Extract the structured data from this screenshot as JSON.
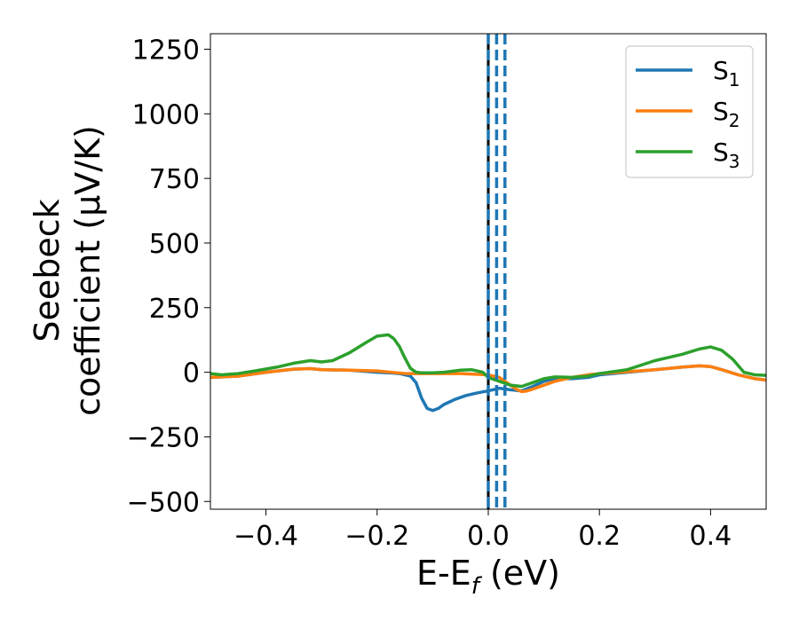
{
  "chart_data": {
    "type": "line",
    "xlabel": "E-E",
    "xlabel_sub": "f",
    "xlabel_unit": " (eV)",
    "ylabel_line1": "Seebeck",
    "ylabel_line2": "coefficient  (μV/K)",
    "xlim": [
      -0.5,
      0.5
    ],
    "ylim": [
      -530,
      1310
    ],
    "xticks": [
      -0.4,
      -0.2,
      0.0,
      0.2,
      0.4
    ],
    "xtick_labels": [
      "−0.4",
      "−0.2",
      "0.0",
      "0.2",
      "0.4"
    ],
    "yticks": [
      -500,
      -250,
      0,
      250,
      500,
      750,
      1000,
      1250
    ],
    "ytick_labels": [
      "−500",
      "−250",
      "0",
      "250",
      "500",
      "750",
      "1000",
      "1250"
    ],
    "grid": false,
    "legend_position": "top-right",
    "vertical_lines": [
      {
        "x": 0.0,
        "style": "solid",
        "color": "#000000"
      },
      {
        "x": 0.0,
        "style": "dashed",
        "color": "#1f77b4"
      },
      {
        "x": 0.015,
        "style": "dashed",
        "color": "#1f77b4"
      },
      {
        "x": 0.03,
        "style": "dashed",
        "color": "#1f77b4"
      }
    ],
    "series": [
      {
        "name": "S",
        "sub": "1",
        "color": "#1f77b4",
        "x": [
          -0.5,
          -0.45,
          -0.4,
          -0.35,
          -0.32,
          -0.3,
          -0.25,
          -0.2,
          -0.18,
          -0.16,
          -0.14,
          -0.13,
          -0.12,
          -0.11,
          -0.1,
          -0.09,
          -0.08,
          -0.06,
          -0.04,
          -0.02,
          0.0,
          0.02,
          0.04,
          0.06,
          0.08,
          0.1,
          0.12,
          0.15,
          0.18,
          0.2,
          0.25,
          0.3,
          0.35,
          0.38,
          0.4,
          0.42,
          0.45,
          0.48,
          0.5
        ],
        "y": [
          -20,
          -15,
          0,
          12,
          14,
          10,
          8,
          0,
          -2,
          -5,
          -15,
          -40,
          -100,
          -140,
          -148,
          -140,
          -125,
          -105,
          -90,
          -80,
          -72,
          -62,
          -68,
          -72,
          -55,
          -35,
          -25,
          -25,
          -20,
          -10,
          0,
          10,
          20,
          25,
          22,
          10,
          -10,
          -25,
          -30
        ]
      },
      {
        "name": "S",
        "sub": "2",
        "color": "#ff7f0e",
        "x": [
          -0.5,
          -0.45,
          -0.4,
          -0.35,
          -0.32,
          -0.3,
          -0.25,
          -0.2,
          -0.15,
          -0.1,
          -0.05,
          0.0,
          0.02,
          0.04,
          0.05,
          0.06,
          0.07,
          0.08,
          0.1,
          0.12,
          0.15,
          0.18,
          0.2,
          0.25,
          0.3,
          0.35,
          0.38,
          0.4,
          0.42,
          0.45,
          0.48,
          0.5
        ],
        "y": [
          -20,
          -15,
          0,
          12,
          14,
          10,
          8,
          5,
          -5,
          -5,
          -5,
          -10,
          -20,
          -50,
          -65,
          -75,
          -72,
          -65,
          -50,
          -35,
          -20,
          -10,
          -5,
          2,
          10,
          20,
          25,
          22,
          10,
          -10,
          -25,
          -30
        ]
      },
      {
        "name": "S",
        "sub": "3",
        "color": "#2ca02c",
        "x": [
          -0.5,
          -0.48,
          -0.45,
          -0.42,
          -0.38,
          -0.35,
          -0.32,
          -0.3,
          -0.28,
          -0.25,
          -0.22,
          -0.2,
          -0.18,
          -0.17,
          -0.16,
          -0.15,
          -0.14,
          -0.13,
          -0.12,
          -0.1,
          -0.08,
          -0.05,
          -0.03,
          -0.01,
          0.0,
          0.02,
          0.04,
          0.06,
          0.08,
          0.1,
          0.12,
          0.15,
          0.18,
          0.2,
          0.25,
          0.3,
          0.35,
          0.38,
          0.4,
          0.42,
          0.44,
          0.46,
          0.48,
          0.5
        ],
        "y": [
          -5,
          -10,
          -5,
          5,
          20,
          35,
          45,
          40,
          45,
          75,
          115,
          140,
          145,
          130,
          100,
          55,
          15,
          0,
          -2,
          -2,
          0,
          8,
          10,
          0,
          -20,
          -35,
          -50,
          -55,
          -40,
          -25,
          -18,
          -20,
          -15,
          -5,
          10,
          45,
          70,
          90,
          98,
          85,
          50,
          0,
          -10,
          -12
        ]
      }
    ]
  }
}
